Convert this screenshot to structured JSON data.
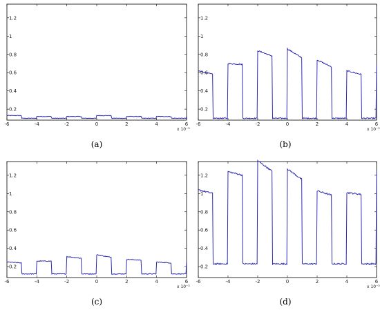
{
  "colors": {
    "trace": "#2b2bb0",
    "axes": "#000000"
  },
  "panels": [
    {
      "caption": "(a)",
      "chart_data": {
        "type": "line",
        "xlim": [
          -6,
          6
        ],
        "ylim": [
          0.08,
          1.35
        ],
        "x_ticks": [
          -6,
          -4,
          -2,
          0,
          2,
          4,
          6
        ],
        "y_ticks": [
          0.2,
          0.4,
          0.6,
          0.8,
          1.0,
          1.2
        ],
        "x_tick_labels": [
          "-6",
          "-4",
          "-2",
          "0",
          "2",
          "4",
          "6"
        ],
        "y_tick_labels": [
          "0.2",
          "0.4",
          "0.6",
          "0.8",
          "1",
          "1.2"
        ],
        "x_exponent": "x 10⁻³",
        "square_wave": {
          "period": 2,
          "start": -6.0,
          "duty": 0.5,
          "low": 0.1,
          "high": [
            0.13,
            0.12,
            0.12,
            0.13,
            0.12,
            0.12
          ],
          "start_level": "high",
          "noise": 0.003
        }
      }
    },
    {
      "caption": "(b)",
      "chart_data": {
        "type": "line",
        "xlim": [
          -6,
          6
        ],
        "ylim": [
          0.08,
          1.35
        ],
        "x_ticks": [
          -6,
          -4,
          -2,
          0,
          2,
          4,
          6
        ],
        "y_ticks": [
          0.2,
          0.4,
          0.6,
          0.8,
          1.0,
          1.2
        ],
        "x_tick_labels": [
          "-6",
          "-4",
          "-2",
          "0",
          "2",
          "4",
          "6"
        ],
        "y_tick_labels": [
          "0.2",
          "0.4",
          "0.6",
          "0.8",
          "1",
          "1.2"
        ],
        "x_exponent": "x 10⁻³",
        "square_wave": {
          "period": 2,
          "start": -6.0,
          "duty": 0.5,
          "low": 0.1,
          "high": [
            0.62,
            0.7,
            0.84,
            0.86,
            0.74,
            0.62,
            0.68
          ],
          "high_end": [
            0.58,
            0.69,
            0.78,
            0.76,
            0.66,
            0.58,
            0.66
          ],
          "start_level": "high",
          "noise": 0.006
        }
      }
    },
    {
      "caption": "(c)",
      "chart_data": {
        "type": "line",
        "xlim": [
          -6,
          6
        ],
        "ylim": [
          0.08,
          1.35
        ],
        "x_ticks": [
          -6,
          -4,
          -2,
          0,
          2,
          4,
          6
        ],
        "y_ticks": [
          0.2,
          0.4,
          0.6,
          0.8,
          1.0,
          1.2
        ],
        "x_tick_labels": [
          "-6",
          "-4",
          "-2",
          "0",
          "2",
          "4",
          "6"
        ],
        "y_tick_labels": [
          "0.2",
          "0.4",
          "0.6",
          "0.8",
          "1",
          "1.2"
        ],
        "x_exponent": "x 10⁻³",
        "square_wave": {
          "period": 2,
          "start": -6.0,
          "duty": 0.5,
          "low": 0.12,
          "high": [
            0.25,
            0.26,
            0.31,
            0.33,
            0.28,
            0.25,
            0.26
          ],
          "high_end": [
            0.24,
            0.26,
            0.29,
            0.3,
            0.27,
            0.24,
            0.26
          ],
          "start_level": "high",
          "noise": 0.004
        }
      }
    },
    {
      "caption": "(d)",
      "chart_data": {
        "type": "line",
        "xlim": [
          -6,
          6
        ],
        "ylim": [
          0.08,
          1.35
        ],
        "x_ticks": [
          -6,
          -4,
          -2,
          0,
          2,
          4,
          6
        ],
        "y_ticks": [
          0.2,
          0.4,
          0.6,
          0.8,
          1.0,
          1.2
        ],
        "x_tick_labels": [
          "-6",
          "-4",
          "-2",
          "0",
          "2",
          "4",
          "6"
        ],
        "y_tick_labels": [
          "0.2",
          "0.4",
          "0.6",
          "0.8",
          "1",
          "1.2"
        ],
        "x_exponent": "x 10⁻³",
        "square_wave": {
          "period": 2,
          "start": -6.0,
          "duty": 0.5,
          "low": 0.23,
          "high": [
            1.04,
            1.24,
            1.36,
            1.27,
            1.03,
            1.01,
            1.25
          ],
          "high_end": [
            1.0,
            1.2,
            1.24,
            1.15,
            0.98,
            0.99,
            1.25
          ],
          "start_level": "high",
          "noise": 0.008
        }
      }
    }
  ]
}
